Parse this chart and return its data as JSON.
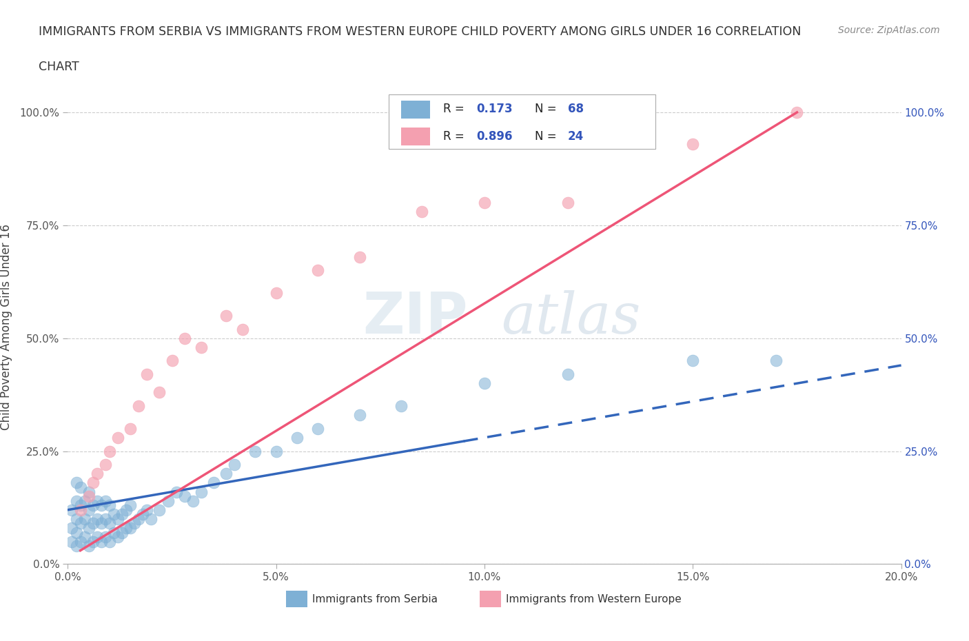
{
  "title_line1": "IMMIGRANTS FROM SERBIA VS IMMIGRANTS FROM WESTERN EUROPE CHILD POVERTY AMONG GIRLS UNDER 16 CORRELATION",
  "title_line2": "CHART",
  "source": "Source: ZipAtlas.com",
  "ylabel": "Child Poverty Among Girls Under 16",
  "xlim": [
    0.0,
    0.2
  ],
  "ylim": [
    0.0,
    1.05
  ],
  "yticks": [
    0.0,
    0.25,
    0.5,
    0.75,
    1.0
  ],
  "ytick_labels": [
    "0.0%",
    "25.0%",
    "50.0%",
    "75.0%",
    "100.0%"
  ],
  "xticks": [
    0.0,
    0.05,
    0.1,
    0.15,
    0.2
  ],
  "xtick_labels": [
    "0.0%",
    "5.0%",
    "10.0%",
    "15.0%",
    "20.0%"
  ],
  "serbia_color": "#7EB0D5",
  "western_color": "#F4A0B0",
  "serbia_line_color": "#3366BB",
  "western_line_color": "#EE5577",
  "R_serbia": 0.173,
  "N_serbia": 68,
  "R_western": 0.896,
  "N_western": 24,
  "serbia_scatter_x": [
    0.001,
    0.001,
    0.001,
    0.002,
    0.002,
    0.002,
    0.002,
    0.002,
    0.003,
    0.003,
    0.003,
    0.003,
    0.004,
    0.004,
    0.004,
    0.005,
    0.005,
    0.005,
    0.005,
    0.006,
    0.006,
    0.006,
    0.007,
    0.007,
    0.007,
    0.008,
    0.008,
    0.008,
    0.009,
    0.009,
    0.009,
    0.01,
    0.01,
    0.01,
    0.011,
    0.011,
    0.012,
    0.012,
    0.013,
    0.013,
    0.014,
    0.014,
    0.015,
    0.015,
    0.016,
    0.017,
    0.018,
    0.019,
    0.02,
    0.022,
    0.024,
    0.026,
    0.028,
    0.03,
    0.032,
    0.035,
    0.038,
    0.04,
    0.045,
    0.05,
    0.055,
    0.06,
    0.07,
    0.08,
    0.1,
    0.12,
    0.15,
    0.17
  ],
  "serbia_scatter_y": [
    0.05,
    0.08,
    0.12,
    0.04,
    0.07,
    0.1,
    0.14,
    0.18,
    0.05,
    0.09,
    0.13,
    0.17,
    0.06,
    0.1,
    0.14,
    0.04,
    0.08,
    0.12,
    0.16,
    0.05,
    0.09,
    0.13,
    0.06,
    0.1,
    0.14,
    0.05,
    0.09,
    0.13,
    0.06,
    0.1,
    0.14,
    0.05,
    0.09,
    0.13,
    0.07,
    0.11,
    0.06,
    0.1,
    0.07,
    0.11,
    0.08,
    0.12,
    0.08,
    0.13,
    0.09,
    0.1,
    0.11,
    0.12,
    0.1,
    0.12,
    0.14,
    0.16,
    0.15,
    0.14,
    0.16,
    0.18,
    0.2,
    0.22,
    0.25,
    0.25,
    0.28,
    0.3,
    0.33,
    0.35,
    0.4,
    0.42,
    0.45,
    0.45
  ],
  "western_scatter_x": [
    0.003,
    0.005,
    0.006,
    0.007,
    0.009,
    0.01,
    0.012,
    0.015,
    0.017,
    0.019,
    0.022,
    0.025,
    0.028,
    0.032,
    0.038,
    0.042,
    0.05,
    0.06,
    0.07,
    0.085,
    0.1,
    0.12,
    0.15,
    0.175
  ],
  "western_scatter_y": [
    0.12,
    0.15,
    0.18,
    0.2,
    0.22,
    0.25,
    0.28,
    0.3,
    0.35,
    0.42,
    0.38,
    0.45,
    0.5,
    0.48,
    0.55,
    0.52,
    0.6,
    0.65,
    0.68,
    0.78,
    0.8,
    0.8,
    0.93,
    1.0
  ],
  "watermark_zip": "ZIP",
  "watermark_atlas": "atlas",
  "background_color": "#FFFFFF",
  "grid_color": "#CCCCCC",
  "legend_text_color": "#3355BB",
  "legend_r_label_color": "#000000"
}
